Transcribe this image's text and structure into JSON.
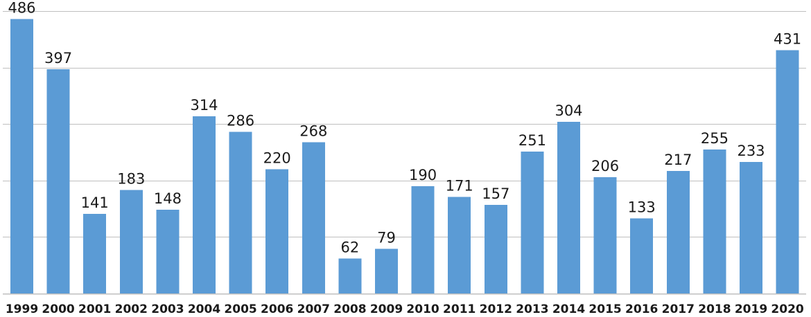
{
  "chart_data": {
    "type": "bar",
    "title": "",
    "xlabel": "",
    "ylabel": "",
    "categories": [
      "1999",
      "2000",
      "2001",
      "2002",
      "2003",
      "2004",
      "2005",
      "2006",
      "2007",
      "2008",
      "2009",
      "2010",
      "2011",
      "2012",
      "2013",
      "2014",
      "2015",
      "2016",
      "2017",
      "2018",
      "2019",
      "2020"
    ],
    "values": [
      486,
      397,
      141,
      183,
      148,
      314,
      286,
      220,
      268,
      62,
      79,
      190,
      171,
      157,
      251,
      304,
      206,
      133,
      217,
      255,
      233,
      431
    ],
    "ylim": [
      0,
      500
    ],
    "yticks": [
      0,
      100,
      200,
      300,
      400,
      500
    ],
    "y_tick_labels_shown": false,
    "grid": true,
    "legend": "none",
    "bar_color": "#5b9bd5",
    "grid_color": "#bfbfbf",
    "data_labels": true
  }
}
